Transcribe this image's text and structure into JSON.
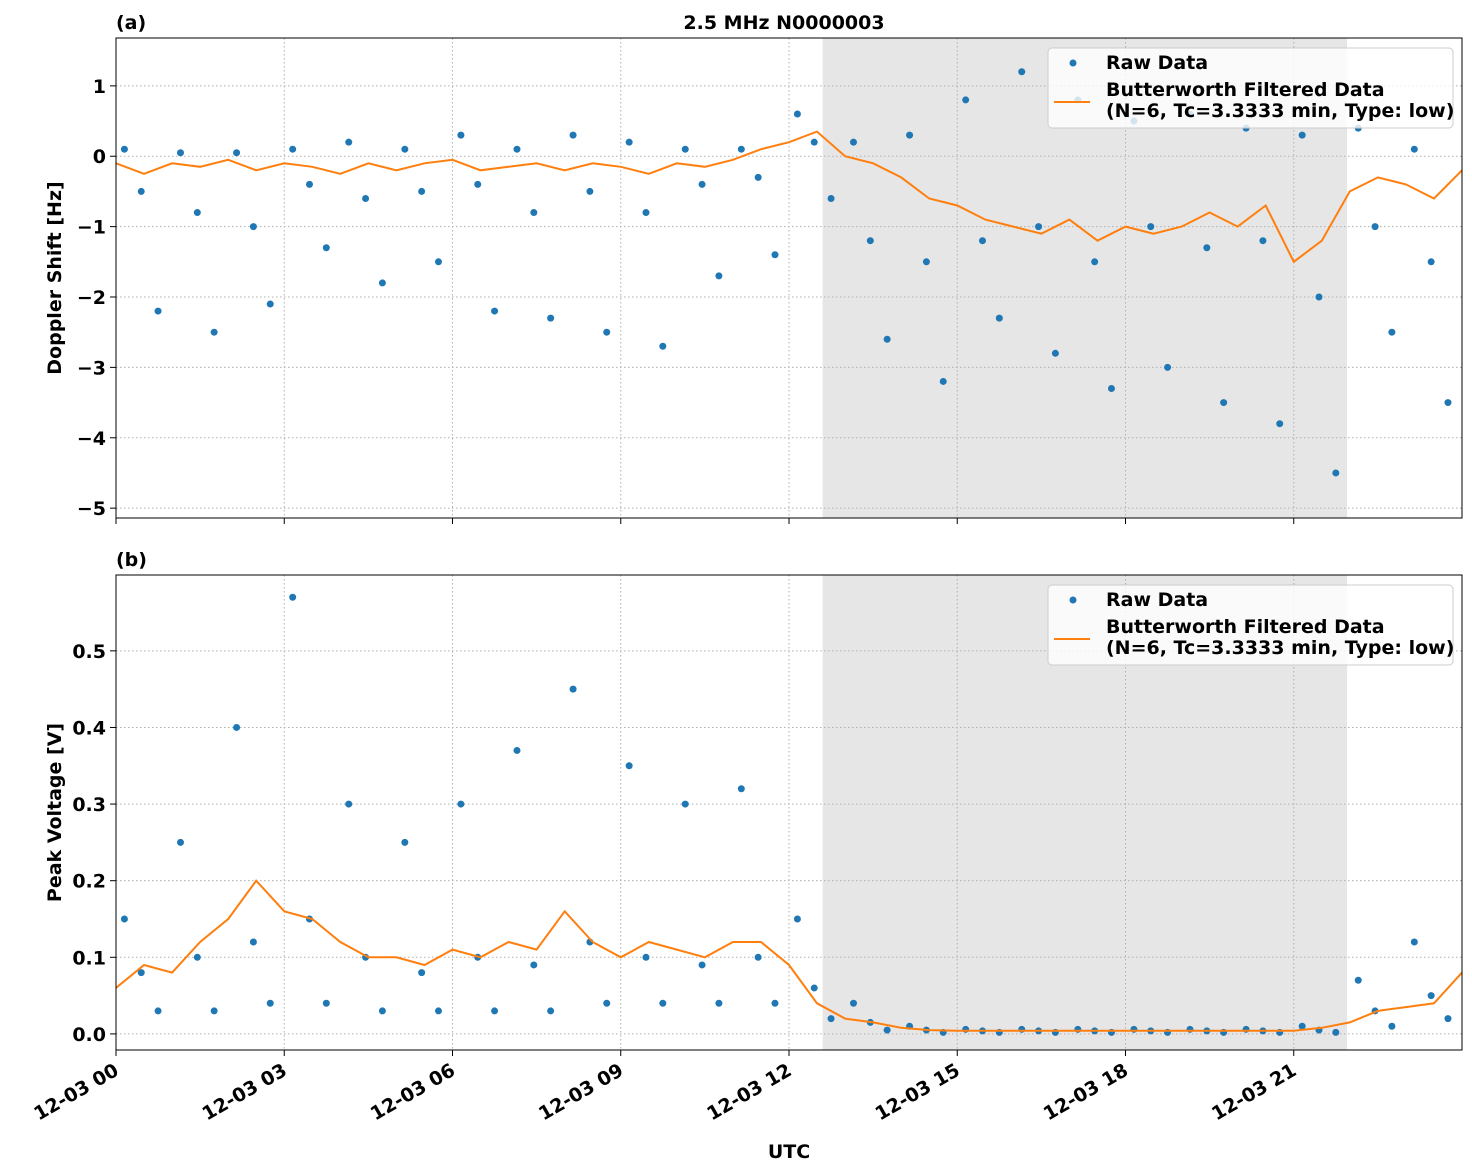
{
  "chart_data": [
    {
      "type": "scatter-line",
      "title": "2.5 MHz N0000003",
      "panel_label": "(a)",
      "ylabel": "Doppler Shift [Hz]",
      "xlim": [
        0,
        24
      ],
      "xticks": [
        0,
        3,
        6,
        9,
        12,
        15,
        18,
        21
      ],
      "ylim": [
        -5.14,
        1.68
      ],
      "yticks": [
        {
          "value": -5,
          "label": "−5"
        },
        {
          "value": -4,
          "label": "−4"
        },
        {
          "value": -3,
          "label": "−3"
        },
        {
          "value": -2,
          "label": "−2"
        },
        {
          "value": -1,
          "label": "−1"
        },
        0,
        1
      ],
      "grid": true,
      "shade": [
        12.6,
        21.95
      ],
      "legend": "upper right",
      "series": [
        {
          "name": "Raw Data",
          "color": "#1f77b4",
          "style": "points",
          "x": [
            0.15,
            0.45,
            0.75,
            1.15,
            1.45,
            1.75,
            2.15,
            2.45,
            2.75,
            3.15,
            3.45,
            3.75,
            4.15,
            4.45,
            4.75,
            5.15,
            5.45,
            5.75,
            6.15,
            6.45,
            6.75,
            7.15,
            7.45,
            7.75,
            8.15,
            8.45,
            8.75,
            9.15,
            9.45,
            9.75,
            10.15,
            10.45,
            10.75,
            11.15,
            11.45,
            11.75,
            12.15,
            12.45,
            12.75,
            13.15,
            13.45,
            13.75,
            14.15,
            14.45,
            14.75,
            15.15,
            15.45,
            15.75,
            16.15,
            16.45,
            16.75,
            17.15,
            17.45,
            17.75,
            18.15,
            18.45,
            18.75,
            19.15,
            19.45,
            19.75,
            20.15,
            20.45,
            20.75,
            21.15,
            21.45,
            21.75,
            22.15,
            22.45,
            22.75,
            23.15,
            23.45,
            23.75
          ],
          "values": [
            0.1,
            -0.5,
            -2.2,
            0.05,
            -0.8,
            -2.5,
            0.05,
            -1.0,
            -2.1,
            0.1,
            -0.4,
            -1.3,
            0.2,
            -0.6,
            -1.8,
            0.1,
            -0.5,
            -1.5,
            0.3,
            -0.4,
            -2.2,
            0.1,
            -0.8,
            -2.3,
            0.3,
            -0.5,
            -2.5,
            0.2,
            -0.8,
            -2.7,
            0.1,
            -0.4,
            -1.7,
            0.1,
            -0.3,
            -1.4,
            0.6,
            0.2,
            -0.6,
            0.2,
            -1.2,
            -2.6,
            0.3,
            -1.5,
            -3.2,
            0.8,
            -1.2,
            -2.3,
            1.2,
            -1.0,
            -2.8,
            0.8,
            -1.5,
            -3.3,
            0.5,
            -1.0,
            -3.0,
            0.6,
            -1.3,
            -3.5,
            0.4,
            -1.2,
            -3.8,
            0.3,
            -2.0,
            -4.5,
            0.4,
            -1.0,
            -2.5,
            0.1,
            -1.5,
            -3.5
          ]
        },
        {
          "name": "Butterworth Filtered Data\n(N=6, Tc=3.3333 min, Type: low)",
          "color": "#ff7f0e",
          "style": "line",
          "x": [
            0,
            0.5,
            1,
            1.5,
            2,
            2.5,
            3,
            3.5,
            4,
            4.5,
            5,
            5.5,
            6,
            6.5,
            7,
            7.5,
            8,
            8.5,
            9,
            9.5,
            10,
            10.5,
            11,
            11.5,
            12,
            12.5,
            13,
            13.5,
            14,
            14.5,
            15,
            15.5,
            16,
            16.5,
            17,
            17.5,
            18,
            18.5,
            19,
            19.5,
            20,
            20.5,
            21,
            21.5,
            22,
            22.5,
            23,
            23.5,
            24
          ],
          "values": [
            -0.1,
            -0.25,
            -0.1,
            -0.15,
            -0.05,
            -0.2,
            -0.1,
            -0.15,
            -0.25,
            -0.1,
            -0.2,
            -0.1,
            -0.05,
            -0.2,
            -0.15,
            -0.1,
            -0.2,
            -0.1,
            -0.15,
            -0.25,
            -0.1,
            -0.15,
            -0.05,
            0.1,
            0.2,
            0.35,
            0,
            -0.1,
            -0.3,
            -0.6,
            -0.7,
            -0.9,
            -1.0,
            -1.1,
            -0.9,
            -1.2,
            -1.0,
            -1.1,
            -1.0,
            -0.8,
            -1.0,
            -0.7,
            -1.5,
            -1.2,
            -0.5,
            -0.3,
            -0.4,
            -0.6,
            -0.2
          ]
        }
      ]
    },
    {
      "type": "scatter-line",
      "panel_label": "(b)",
      "ylabel": "Peak Voltage [V]",
      "xlabel": "UTC",
      "xlim": [
        0,
        24
      ],
      "xticks": [
        {
          "value": 0,
          "label": "12-03 00"
        },
        {
          "value": 3,
          "label": "12-03 03"
        },
        {
          "value": 6,
          "label": "12-03 06"
        },
        {
          "value": 9,
          "label": "12-03 09"
        },
        {
          "value": 12,
          "label": "12-03 12"
        },
        {
          "value": 15,
          "label": "12-03 15"
        },
        {
          "value": 18,
          "label": "12-03 18"
        },
        {
          "value": 21,
          "label": "12-03 21"
        }
      ],
      "ylim": [
        -0.021,
        0.599
      ],
      "yticks": [
        {
          "value": 0,
          "label": "0.0"
        },
        0.1,
        0.2,
        0.3,
        0.4,
        0.5
      ],
      "grid": true,
      "shade": [
        12.6,
        21.95
      ],
      "legend": "upper right",
      "series": [
        {
          "name": "Raw Data",
          "color": "#1f77b4",
          "style": "points",
          "x": [
            0.15,
            0.45,
            0.75,
            1.15,
            1.45,
            1.75,
            2.15,
            2.45,
            2.75,
            3.15,
            3.45,
            3.75,
            4.15,
            4.45,
            4.75,
            5.15,
            5.45,
            5.75,
            6.15,
            6.45,
            6.75,
            7.15,
            7.45,
            7.75,
            8.15,
            8.45,
            8.75,
            9.15,
            9.45,
            9.75,
            10.15,
            10.45,
            10.75,
            11.15,
            11.45,
            11.75,
            12.15,
            12.45,
            12.75,
            13.15,
            13.45,
            13.75,
            14.15,
            14.45,
            14.75,
            15.15,
            15.45,
            15.75,
            16.15,
            16.45,
            16.75,
            17.15,
            17.45,
            17.75,
            18.15,
            18.45,
            18.75,
            19.15,
            19.45,
            19.75,
            20.15,
            20.45,
            20.75,
            21.15,
            21.45,
            21.75,
            22.15,
            22.45,
            22.75,
            23.15,
            23.45,
            23.75
          ],
          "values": [
            0.15,
            0.08,
            0.03,
            0.25,
            0.1,
            0.03,
            0.4,
            0.12,
            0.04,
            0.57,
            0.15,
            0.04,
            0.3,
            0.1,
            0.03,
            0.25,
            0.08,
            0.03,
            0.3,
            0.1,
            0.03,
            0.37,
            0.09,
            0.03,
            0.45,
            0.12,
            0.04,
            0.35,
            0.1,
            0.04,
            0.3,
            0.09,
            0.04,
            0.32,
            0.1,
            0.04,
            0.15,
            0.06,
            0.02,
            0.04,
            0.015,
            0.005,
            0.01,
            0.005,
            0.002,
            0.006,
            0.004,
            0.002,
            0.006,
            0.004,
            0.002,
            0.006,
            0.004,
            0.002,
            0.006,
            0.004,
            0.002,
            0.006,
            0.004,
            0.002,
            0.006,
            0.004,
            0.002,
            0.01,
            0.005,
            0.002,
            0.07,
            0.03,
            0.01,
            0.12,
            0.05,
            0.02
          ]
        },
        {
          "name": "Butterworth Filtered Data\n(N=6, Tc=3.3333 min, Type: low)",
          "color": "#ff7f0e",
          "style": "line",
          "x": [
            0,
            0.5,
            1,
            1.5,
            2,
            2.5,
            3,
            3.5,
            4,
            4.5,
            5,
            5.5,
            6,
            6.5,
            7,
            7.5,
            8,
            8.5,
            9,
            9.5,
            10,
            10.5,
            11,
            11.5,
            12,
            12.5,
            13,
            13.5,
            14,
            14.5,
            15,
            15.5,
            16,
            16.5,
            17,
            17.5,
            18,
            18.5,
            19,
            19.5,
            20,
            20.5,
            21,
            21.5,
            22,
            22.5,
            23,
            23.5,
            24
          ],
          "values": [
            0.06,
            0.09,
            0.08,
            0.12,
            0.15,
            0.2,
            0.16,
            0.15,
            0.12,
            0.1,
            0.1,
            0.09,
            0.11,
            0.1,
            0.12,
            0.11,
            0.16,
            0.12,
            0.1,
            0.12,
            0.11,
            0.1,
            0.12,
            0.12,
            0.09,
            0.04,
            0.02,
            0.015,
            0.008,
            0.005,
            0.004,
            0.004,
            0.004,
            0.004,
            0.004,
            0.004,
            0.004,
            0.004,
            0.004,
            0.004,
            0.004,
            0.004,
            0.004,
            0.008,
            0.015,
            0.03,
            0.035,
            0.04,
            0.08
          ]
        }
      ]
    }
  ]
}
